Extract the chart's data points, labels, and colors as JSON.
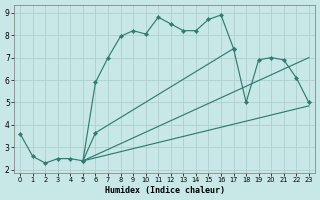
{
  "xlabel": "Humidex (Indice chaleur)",
  "bg_color": "#c8e8e8",
  "grid_color": "#b0d0d0",
  "line_color": "#2e7d6e",
  "xlim_min": -0.5,
  "xlim_max": 23.5,
  "ylim_min": 1.85,
  "ylim_max": 9.35,
  "xticks": [
    0,
    1,
    2,
    3,
    4,
    5,
    6,
    7,
    8,
    9,
    10,
    11,
    12,
    13,
    14,
    15,
    16,
    17,
    18,
    19,
    20,
    21,
    22,
    23
  ],
  "yticks": [
    2,
    3,
    4,
    5,
    6,
    7,
    8,
    9
  ],
  "curve1_x": [
    0,
    1,
    2,
    3,
    4,
    5,
    6,
    7,
    8,
    9,
    10,
    11,
    12,
    13,
    14,
    15,
    16,
    17
  ],
  "curve1_y": [
    3.6,
    2.6,
    2.3,
    2.5,
    2.5,
    2.4,
    5.9,
    7.0,
    7.95,
    8.2,
    8.05,
    8.8,
    8.5,
    8.2,
    8.2,
    8.7,
    8.9,
    7.4
  ],
  "curve2_x": [
    5,
    6,
    17,
    18,
    19,
    20,
    21,
    22,
    23
  ],
  "curve2_y": [
    2.4,
    3.65,
    7.4,
    5.0,
    6.9,
    7.0,
    6.9,
    6.1,
    5.0
  ],
  "line3_x": [
    5,
    23
  ],
  "line3_y": [
    2.4,
    7.0
  ],
  "line4_x": [
    5,
    23
  ],
  "line4_y": [
    2.4,
    4.85
  ]
}
